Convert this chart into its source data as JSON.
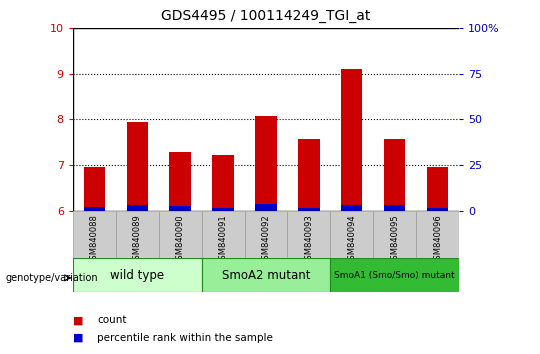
{
  "title": "GDS4495 / 100114249_TGI_at",
  "samples": [
    "GSM840088",
    "GSM840089",
    "GSM840090",
    "GSM840091",
    "GSM840092",
    "GSM840093",
    "GSM840094",
    "GSM840095",
    "GSM840096"
  ],
  "red_values": [
    6.95,
    7.95,
    7.28,
    7.22,
    8.08,
    7.58,
    9.1,
    7.58,
    6.95
  ],
  "blue_values": [
    6.08,
    6.12,
    6.1,
    6.05,
    6.15,
    6.05,
    6.12,
    6.12,
    6.05
  ],
  "bar_bottom": 6.0,
  "ylim_left": [
    6.0,
    10.0
  ],
  "yticks_left": [
    6,
    7,
    8,
    9,
    10
  ],
  "yticks_right": [
    0,
    25,
    50,
    75,
    100
  ],
  "ytick_labels_right": [
    "0",
    "25",
    "50",
    "75",
    "100%"
  ],
  "groups": [
    {
      "label": "wild type",
      "start": 0,
      "end": 3,
      "color": "#ccffcc"
    },
    {
      "label": "SmoA2 mutant",
      "start": 3,
      "end": 6,
      "color": "#99ee99"
    },
    {
      "label": "SmoA1 (Smo/Smo) mutant",
      "start": 6,
      "end": 9,
      "color": "#33bb33"
    }
  ],
  "bar_width": 0.5,
  "red_color": "#cc0000",
  "blue_color": "#0000cc",
  "legend_label_red": "count",
  "legend_label_blue": "percentile rank within the sample",
  "genotype_label": "genotype/variation",
  "tick_color_left": "#cc0000",
  "tick_color_right": "#0000cc",
  "tick_bg_color": "#cccccc",
  "group_border_color": "#228822"
}
